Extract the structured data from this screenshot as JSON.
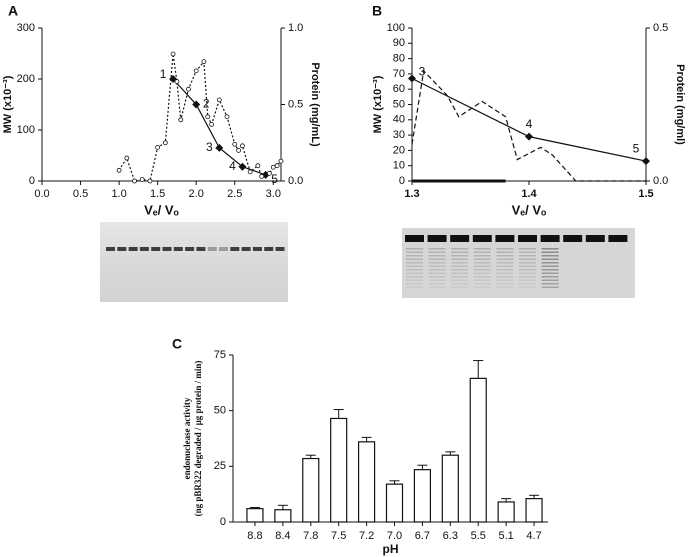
{
  "chart_data": [
    {
      "type": "line",
      "panel_label": "A",
      "xlabel": "Vₑ/ Vₒ",
      "ylabel": "MW (x10⁻³)",
      "y2label": "Protein (mg/mL)",
      "xlim": [
        0,
        3.1
      ],
      "xticks": [
        {
          "value": 0,
          "label": "0.0"
        },
        0.5,
        {
          "value": 1,
          "label": "1.0"
        },
        1.5,
        {
          "value": 2,
          "label": "2.0"
        },
        2.5,
        {
          "value": 3,
          "label": "3.0"
        }
      ],
      "ylim": [
        0,
        300
      ],
      "yticks": [
        0,
        100,
        200,
        300
      ],
      "y2lim": [
        0,
        1.0
      ],
      "y2ticks": [
        {
          "value": 0,
          "label": "0.0"
        },
        0.5,
        {
          "value": 1,
          "label": "1.0"
        }
      ],
      "series": [
        {
          "color": "#111111",
          "style": "solid",
          "marker": "diamond",
          "x": [
            1.7,
            2.0,
            2.3,
            2.6,
            2.9
          ],
          "values": [
            200,
            150,
            65,
            28,
            12
          ],
          "point_labels": [
            "1",
            "2",
            "3",
            "4",
            "5"
          ]
        },
        {
          "color": "#111111",
          "style": "dotted",
          "marker": "circle",
          "axis": "y2",
          "x": [
            1.0,
            1.1,
            1.2,
            1.3,
            1.4,
            1.5,
            1.6,
            1.7,
            1.75,
            1.8,
            1.9,
            2.0,
            2.1,
            2.15,
            2.2,
            2.3,
            2.4,
            2.5,
            2.55,
            2.6,
            2.7,
            2.8,
            2.85,
            2.95,
            3.0,
            3.05,
            3.1
          ],
          "values": [
            0.07,
            0.15,
            0.0,
            0.01,
            0.0,
            0.22,
            0.25,
            0.83,
            0.65,
            0.4,
            0.6,
            0.72,
            0.78,
            0.42,
            0.37,
            0.53,
            0.42,
            0.24,
            0.2,
            0.23,
            0.06,
            0.1,
            0.03,
            0.05,
            0.09,
            0.1,
            0.13
          ]
        }
      ]
    },
    {
      "type": "line",
      "panel_label": "B",
      "xlabel": "Vₑ/ Vₒ",
      "ylabel": "MW (x10⁻³)",
      "y2label": "Protein (mg/ml)",
      "xlim": [
        1.3,
        1.5
      ],
      "xticks": [
        1.3,
        1.4,
        1.5
      ],
      "ylim": [
        0,
        100
      ],
      "yticks": [
        0,
        10,
        20,
        30,
        40,
        50,
        60,
        70,
        80,
        90,
        100
      ],
      "y2lim": [
        0,
        0.5
      ],
      "y2ticks": [
        {
          "value": 0,
          "label": "0.0"
        },
        0.5
      ],
      "series": [
        {
          "color": "#111111",
          "style": "solid",
          "marker": "diamond",
          "x": [
            1.3,
            1.4,
            1.5
          ],
          "values": [
            67,
            29,
            13
          ],
          "point_labels": [
            "3",
            "4",
            "5"
          ]
        },
        {
          "color": "#111111",
          "style": "dashed",
          "marker": "none",
          "axis": "y2",
          "x": [
            1.3,
            1.31,
            1.33,
            1.34,
            1.36,
            1.38,
            1.39,
            1.41,
            1.42,
            1.44,
            1.5
          ],
          "values": [
            0.12,
            0.36,
            0.28,
            0.21,
            0.26,
            0.21,
            0.07,
            0.11,
            0.085,
            0.0,
            0.0
          ]
        }
      ]
    },
    {
      "type": "bar",
      "panel_label": "C",
      "xlabel": "pH",
      "ylabel": [
        "endonuclease activity",
        "(ng pBR322 degraded / µg protein / min)"
      ],
      "categories": [
        "8.8",
        "8.4",
        "7.8",
        "7.5",
        "7.2",
        "7.0",
        "6.7",
        "6.3",
        "5.5",
        "5.1",
        "4.7"
      ],
      "values": [
        6,
        5.5,
        28.5,
        46.5,
        36,
        17,
        23.5,
        30,
        64.5,
        9,
        10.5
      ],
      "errors": [
        0.5,
        2,
        1.5,
        4,
        2,
        1.5,
        2,
        1.5,
        8,
        1.5,
        1.5
      ],
      "color": "#ffffff",
      "ylim": [
        0,
        75
      ],
      "yticks": [
        0,
        25,
        50,
        75
      ]
    }
  ]
}
